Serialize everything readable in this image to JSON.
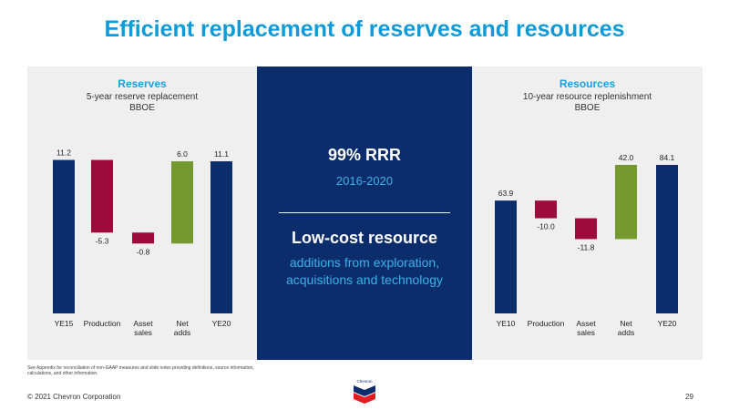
{
  "title": "Efficient replacement of reserves and resources",
  "left_panel": {
    "heading": "Reserves",
    "sub1": "5-year reserve replacement",
    "sub2": "BBOE"
  },
  "right_panel": {
    "heading": "Resources",
    "sub1": "10-year resource replenishment",
    "sub2": "BBOE"
  },
  "center": {
    "rrr": "99% RRR",
    "years": "2016-2020",
    "lowcost": "Low-cost resource",
    "description": "additions from exploration, acquisitions and technology"
  },
  "footnote": "See Appendix for reconciliation of non-GAAP measures and slide notes providing definitions, source information, calculations, and other information.",
  "copyright": "© 2021 Chevron Corporation",
  "page_number": "29",
  "logo": {
    "text": "Chevron",
    "colors": [
      "#e31b23",
      "#0b2d6b"
    ]
  },
  "colors": {
    "navy": "#0b2d6b",
    "red": "#9c0b3b",
    "green": "#73992f",
    "accent_blue": "#0e9bd8"
  },
  "chart_data": [
    {
      "type": "bar",
      "variant": "waterfall",
      "title": "Reserves",
      "ylim": [
        0,
        12.5
      ],
      "categories": [
        "YE15",
        "Production",
        "Asset sales",
        "Net adds",
        "YE20"
      ],
      "values": [
        11.2,
        -5.3,
        -0.8,
        6.0,
        11.1
      ],
      "value_labels": [
        "11.2",
        "-5.3",
        "-0.8",
        "6.0",
        "11.1"
      ],
      "kinds": [
        "total",
        "decrease",
        "decrease",
        "increase",
        "total"
      ],
      "tick_lines": [
        [
          "YE15"
        ],
        [
          "Production"
        ],
        [
          "Asset",
          "sales"
        ],
        [
          "Net",
          "adds"
        ],
        [
          "YE20"
        ]
      ]
    },
    {
      "type": "bar",
      "variant": "waterfall",
      "title": "Resources",
      "ylim": [
        0,
        97
      ],
      "categories": [
        "YE10",
        "Production",
        "Asset sales",
        "Net adds",
        "YE20"
      ],
      "values": [
        63.9,
        -10.0,
        -11.8,
        42.0,
        84.1
      ],
      "value_labels": [
        "63.9",
        "-10.0",
        "-11.8",
        "42.0",
        "84.1"
      ],
      "kinds": [
        "total",
        "decrease",
        "decrease",
        "increase",
        "total"
      ],
      "tick_lines": [
        [
          "YE10"
        ],
        [
          "Production"
        ],
        [
          "Asset",
          "sales"
        ],
        [
          "Net",
          "adds"
        ],
        [
          "YE20"
        ]
      ]
    }
  ]
}
